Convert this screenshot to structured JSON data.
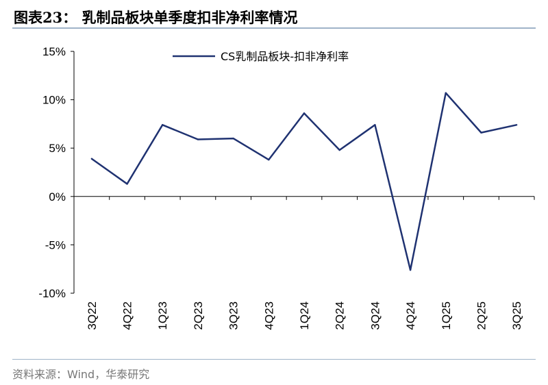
{
  "header": {
    "title": "图表23：  乳制品板块单季度扣非净利率情况"
  },
  "footer": {
    "source": "资料来源：Wind，华泰研究"
  },
  "chart_data": {
    "type": "line",
    "title": "",
    "xlabel": "",
    "ylabel": "",
    "categories": [
      "3Q22",
      "4Q22",
      "1Q23",
      "2Q23",
      "3Q23",
      "4Q23",
      "1Q24",
      "2Q24",
      "3Q24",
      "4Q24",
      "1Q25",
      "2Q25",
      "3Q25"
    ],
    "series": [
      {
        "name": "CS乳制品板块-扣非净利率",
        "color": "#1f3271",
        "values": [
          3.9,
          1.3,
          7.4,
          5.9,
          6.0,
          3.8,
          8.6,
          4.8,
          7.4,
          -7.6,
          10.7,
          6.6,
          7.4
        ]
      }
    ],
    "ylim": [
      -10,
      15
    ],
    "yticks": [
      -10,
      -5,
      0,
      5,
      10,
      15
    ],
    "ytick_labels": [
      "-10%",
      "-5%",
      "0%",
      "5%",
      "10%",
      "15%"
    ],
    "grid": false,
    "legend_position": "top-center"
  }
}
